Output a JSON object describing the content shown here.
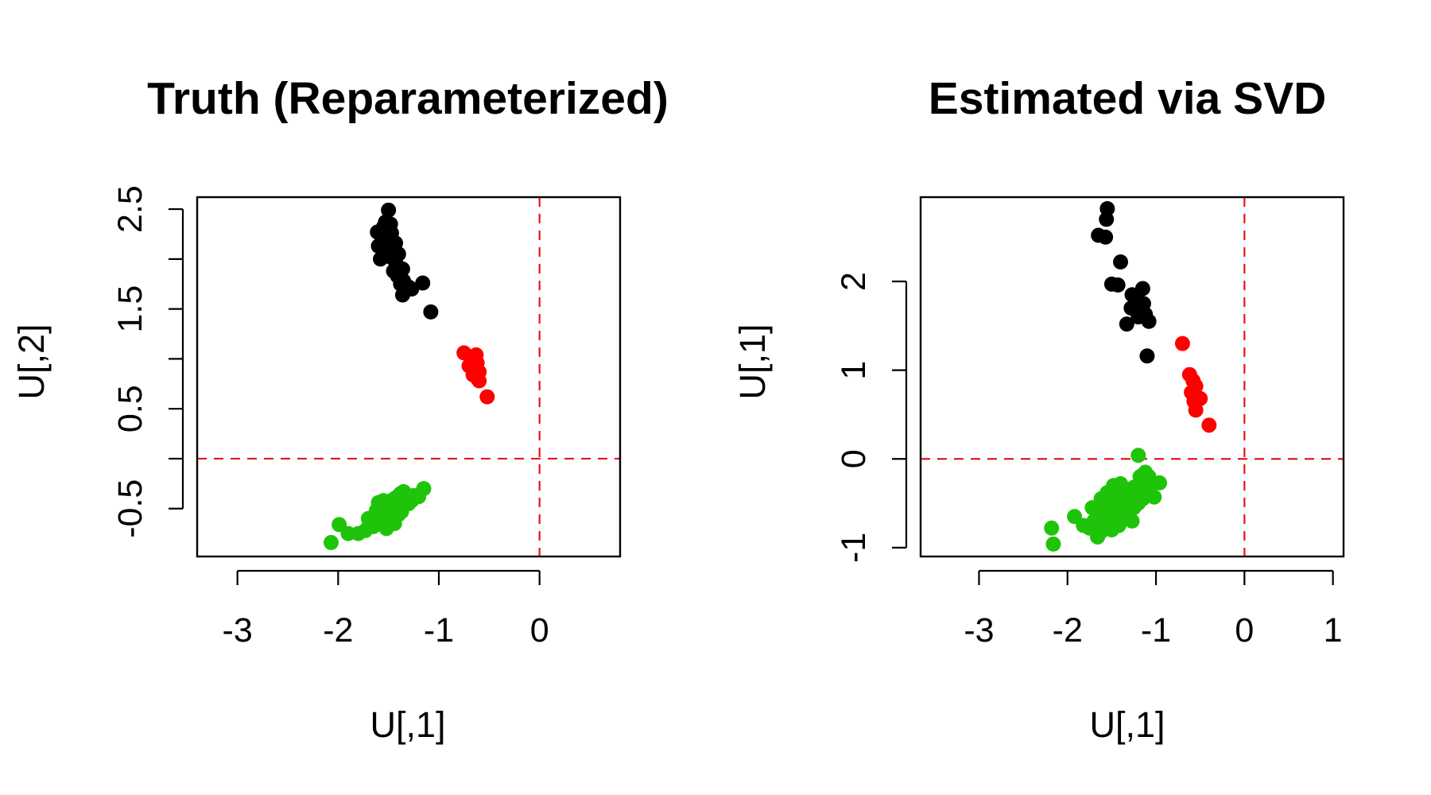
{
  "chart_data": [
    {
      "type": "scatter",
      "title": "Truth (Reparameterized)",
      "xlabel": "U[,1]",
      "ylabel": "U[,2]",
      "xlim": [
        -3.4,
        0.8
      ],
      "ylim": [
        -0.98,
        2.62
      ],
      "xticks": [
        -3,
        -2,
        -1,
        0
      ],
      "xtick_labels": [
        "-3",
        "-2",
        "-1",
        "0"
      ],
      "yticks": [
        -0.5,
        0,
        0.5,
        1,
        1.5,
        2,
        2.5
      ],
      "ytick_labels": [
        "-0.5",
        "",
        "0.5",
        "",
        "1.5",
        "",
        "2.5"
      ],
      "reference_lines": {
        "x": 0,
        "y": 0,
        "color": "#e8141e",
        "style": "dashed"
      },
      "grid": false,
      "legend": "none",
      "series": [
        {
          "color": "#000000",
          "points": [
            [
              -1.5,
              2.49
            ],
            [
              -1.53,
              2.37
            ],
            [
              -1.48,
              2.35
            ],
            [
              -1.55,
              2.32
            ],
            [
              -1.61,
              2.27
            ],
            [
              -1.47,
              2.26
            ],
            [
              -1.52,
              2.23
            ],
            [
              -1.56,
              2.2
            ],
            [
              -1.43,
              2.16
            ],
            [
              -1.5,
              2.15
            ],
            [
              -1.6,
              2.13
            ],
            [
              -1.45,
              2.1
            ],
            [
              -1.53,
              2.08
            ],
            [
              -1.4,
              2.05
            ],
            [
              -1.48,
              2.02
            ],
            [
              -1.58,
              2.0
            ],
            [
              -1.43,
              1.97
            ],
            [
              -1.36,
              1.9
            ],
            [
              -1.45,
              1.88
            ],
            [
              -1.41,
              1.83
            ],
            [
              -1.35,
              1.78
            ],
            [
              -1.38,
              1.75
            ],
            [
              -1.3,
              1.72
            ],
            [
              -1.16,
              1.76
            ],
            [
              -1.27,
              1.7
            ],
            [
              -1.36,
              1.64
            ],
            [
              -1.08,
              1.47
            ]
          ]
        },
        {
          "color": "#ff0000",
          "points": [
            [
              -0.75,
              1.06
            ],
            [
              -0.63,
              1.04
            ],
            [
              -0.67,
              1.0
            ],
            [
              -0.62,
              0.96
            ],
            [
              -0.7,
              0.93
            ],
            [
              -0.64,
              0.9
            ],
            [
              -0.6,
              0.87
            ],
            [
              -0.66,
              0.84
            ],
            [
              -0.62,
              0.81
            ],
            [
              -0.6,
              0.78
            ],
            [
              -0.52,
              0.62
            ]
          ]
        },
        {
          "color": "#1fc40a",
          "points": [
            [
              -2.07,
              -0.84
            ],
            [
              -1.99,
              -0.66
            ],
            [
              -1.9,
              -0.75
            ],
            [
              -1.8,
              -0.75
            ],
            [
              -1.73,
              -0.72
            ],
            [
              -1.69,
              -0.65
            ],
            [
              -1.64,
              -0.62
            ],
            [
              -1.6,
              -0.57
            ],
            [
              -1.62,
              -0.52
            ],
            [
              -1.57,
              -0.5
            ],
            [
              -1.53,
              -0.47
            ],
            [
              -1.5,
              -0.45
            ],
            [
              -1.47,
              -0.42
            ],
            [
              -1.44,
              -0.4
            ],
            [
              -1.41,
              -0.38
            ],
            [
              -1.38,
              -0.35
            ],
            [
              -1.35,
              -0.33
            ],
            [
              -1.32,
              -0.36
            ],
            [
              -1.29,
              -0.39
            ],
            [
              -1.25,
              -0.37
            ],
            [
              -1.2,
              -0.38
            ],
            [
              -1.15,
              -0.3
            ],
            [
              -1.6,
              -0.44
            ],
            [
              -1.55,
              -0.42
            ],
            [
              -1.52,
              -0.6
            ],
            [
              -1.48,
              -0.55
            ],
            [
              -1.45,
              -0.52
            ],
            [
              -1.42,
              -0.5
            ],
            [
              -1.39,
              -0.47
            ],
            [
              -1.36,
              -0.44
            ],
            [
              -1.33,
              -0.42
            ],
            [
              -1.5,
              -0.6
            ],
            [
              -1.47,
              -0.62
            ],
            [
              -1.43,
              -0.58
            ],
            [
              -1.4,
              -0.56
            ],
            [
              -1.37,
              -0.53
            ],
            [
              -1.56,
              -0.64
            ],
            [
              -1.52,
              -0.7
            ],
            [
              -1.65,
              -0.68
            ],
            [
              -1.58,
              -0.54
            ],
            [
              -1.46,
              -0.48
            ],
            [
              -1.3,
              -0.45
            ],
            [
              -1.27,
              -0.42
            ],
            [
              -1.7,
              -0.6
            ],
            [
              -1.44,
              -0.65
            ]
          ]
        }
      ]
    },
    {
      "type": "scatter",
      "title": "Estimated via SVD",
      "xlabel": "U[,1]",
      "ylabel": "U[,1]",
      "xlim": [
        -3.66,
        1.12
      ],
      "ylim": [
        -1.1,
        2.95
      ],
      "xticks": [
        -3,
        -2,
        -1,
        0,
        1
      ],
      "xtick_labels": [
        "-3",
        "-2",
        "-1",
        "0",
        "1"
      ],
      "yticks": [
        -1,
        0,
        1,
        2
      ],
      "ytick_labels": [
        "-1",
        "0",
        "1",
        "2"
      ],
      "reference_lines": {
        "x": 0,
        "y": 0,
        "color": "#e8141e",
        "style": "dashed"
      },
      "grid": false,
      "legend": "none",
      "series": [
        {
          "color": "#000000",
          "points": [
            [
              -1.55,
              2.82
            ],
            [
              -1.56,
              2.7
            ],
            [
              -1.65,
              2.52
            ],
            [
              -1.57,
              2.5
            ],
            [
              -1.4,
              2.22
            ],
            [
              -1.5,
              1.97
            ],
            [
              -1.43,
              1.96
            ],
            [
              -1.15,
              1.92
            ],
            [
              -1.27,
              1.85
            ],
            [
              -1.22,
              1.8
            ],
            [
              -1.14,
              1.75
            ],
            [
              -1.28,
              1.7
            ],
            [
              -1.18,
              1.68
            ],
            [
              -1.12,
              1.63
            ],
            [
              -1.2,
              1.6
            ],
            [
              -1.08,
              1.55
            ],
            [
              -1.33,
              1.52
            ],
            [
              -1.1,
              1.16
            ]
          ]
        },
        {
          "color": "#ff0000",
          "points": [
            [
              -0.7,
              1.3
            ],
            [
              -0.62,
              0.95
            ],
            [
              -0.58,
              0.88
            ],
            [
              -0.55,
              0.82
            ],
            [
              -0.6,
              0.75
            ],
            [
              -0.5,
              0.68
            ],
            [
              -0.57,
              0.65
            ],
            [
              -0.55,
              0.55
            ],
            [
              -0.4,
              0.38
            ]
          ]
        },
        {
          "color": "#1fc40a",
          "points": [
            [
              -1.2,
              0.04
            ],
            [
              -1.12,
              -0.15
            ],
            [
              -1.08,
              -0.2
            ],
            [
              -1.03,
              -0.27
            ],
            [
              -0.96,
              -0.27
            ],
            [
              -1.15,
              -0.25
            ],
            [
              -1.2,
              -0.3
            ],
            [
              -1.25,
              -0.32
            ],
            [
              -1.3,
              -0.35
            ],
            [
              -1.35,
              -0.38
            ],
            [
              -1.4,
              -0.42
            ],
            [
              -1.45,
              -0.45
            ],
            [
              -1.5,
              -0.5
            ],
            [
              -1.55,
              -0.55
            ],
            [
              -1.6,
              -0.6
            ],
            [
              -1.65,
              -0.65
            ],
            [
              -1.7,
              -0.7
            ],
            [
              -1.75,
              -0.78
            ],
            [
              -1.62,
              -0.82
            ],
            [
              -1.66,
              -0.88
            ],
            [
              -1.5,
              -0.8
            ],
            [
              -1.42,
              -0.75
            ],
            [
              -1.36,
              -0.68
            ],
            [
              -1.3,
              -0.6
            ],
            [
              -1.25,
              -0.55
            ],
            [
              -1.2,
              -0.5
            ],
            [
              -1.15,
              -0.45
            ],
            [
              -1.08,
              -0.38
            ],
            [
              -1.02,
              -0.43
            ],
            [
              -1.12,
              -0.32
            ],
            [
              -1.22,
              -0.4
            ],
            [
              -1.28,
              -0.48
            ],
            [
              -1.33,
              -0.52
            ],
            [
              -1.38,
              -0.58
            ],
            [
              -1.45,
              -0.62
            ],
            [
              -1.52,
              -0.68
            ],
            [
              -1.58,
              -0.72
            ],
            [
              -1.62,
              -0.45
            ],
            [
              -1.55,
              -0.38
            ],
            [
              -1.48,
              -0.3
            ],
            [
              -1.4,
              -0.28
            ],
            [
              -1.6,
              -0.72
            ],
            [
              -1.35,
              -0.55
            ],
            [
              -1.18,
              -0.2
            ],
            [
              -1.92,
              -0.65
            ],
            [
              -1.82,
              -0.75
            ],
            [
              -2.18,
              -0.78
            ],
            [
              -2.16,
              -0.96
            ],
            [
              -1.72,
              -0.55
            ],
            [
              -1.27,
              -0.7
            ]
          ]
        }
      ]
    }
  ]
}
